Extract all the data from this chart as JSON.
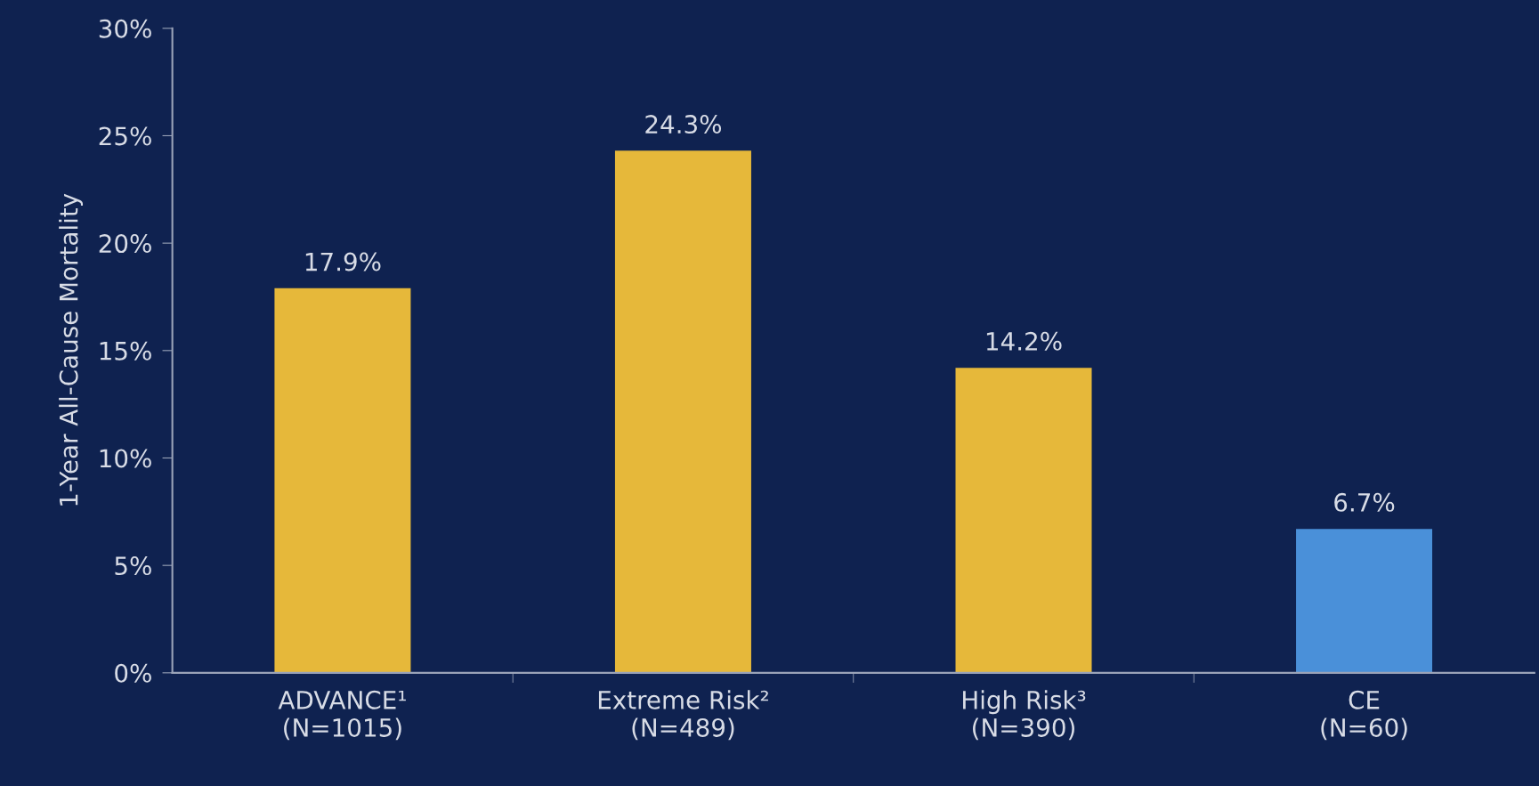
{
  "chart_data": {
    "type": "bar",
    "ylabel": "1-Year All-Cause Mortality",
    "categories": [
      "ADVANCE¹\n(N=1015)",
      "Extreme Risk²\n(N=489)",
      "High Risk³\n(N=390)",
      "CE\n(N=60)"
    ],
    "values": [
      17.9,
      24.3,
      14.2,
      6.7
    ],
    "colors": [
      "#e6b83a",
      "#e6b83a",
      "#e6b83a",
      "#4a90d9"
    ],
    "value_labels": [
      "17.9%",
      "24.3%",
      "14.2%",
      "6.7%"
    ],
    "ylim": [
      0,
      30
    ],
    "yticks": [
      {
        "value": 0,
        "label": "0%"
      },
      {
        "value": 5,
        "label": "5%"
      },
      {
        "value": 10,
        "label": "10%"
      },
      {
        "value": 15,
        "label": "15%"
      },
      {
        "value": 20,
        "label": "20%"
      },
      {
        "value": 25,
        "label": "25%"
      },
      {
        "value": 30,
        "label": "30%"
      }
    ],
    "grid": false,
    "legend": false
  }
}
